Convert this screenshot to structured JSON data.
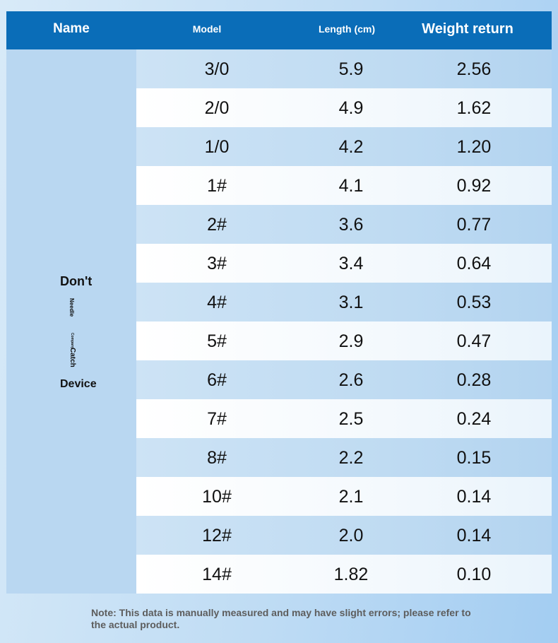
{
  "header": {
    "name": "Name",
    "model": "Model",
    "length": "Length (cm)",
    "weight": "Weight return"
  },
  "name_cell": {
    "line1": "Don't",
    "needle": "Needle",
    "company": "Company",
    "catch": "Catch",
    "line_last": "Device"
  },
  "rows": [
    {
      "model": "3/0",
      "length": "5.9",
      "weight": "2.56"
    },
    {
      "model": "2/0",
      "length": "4.9",
      "weight": "1.62"
    },
    {
      "model": "1/0",
      "length": "4.2",
      "weight": "1.20"
    },
    {
      "model": "1#",
      "length": "4.1",
      "weight": "0.92"
    },
    {
      "model": "2#",
      "length": "3.6",
      "weight": "0.77"
    },
    {
      "model": "3#",
      "length": "3.4",
      "weight": "0.64"
    },
    {
      "model": "4#",
      "length": "3.1",
      "weight": "0.53"
    },
    {
      "model": "5#",
      "length": "2.9",
      "weight": "0.47"
    },
    {
      "model": "6#",
      "length": "2.6",
      "weight": "0.28"
    },
    {
      "model": "7#",
      "length": "2.5",
      "weight": "0.24"
    },
    {
      "model": "8#",
      "length": "2.2",
      "weight": "0.15"
    },
    {
      "model": "10#",
      "length": "2.1",
      "weight": "0.14"
    },
    {
      "model": "12#",
      "length": "2.0",
      "weight": "0.14"
    },
    {
      "model": "14#",
      "length": "1.82",
      "weight": "0.10"
    }
  ],
  "note": "Note: This data is manually measured and may have slight errors; please refer to the actual product.",
  "colors": {
    "header_bg": "#0a6db8",
    "name_col_bg": "#b9d7f1",
    "note_text": "#5d5d5d"
  }
}
